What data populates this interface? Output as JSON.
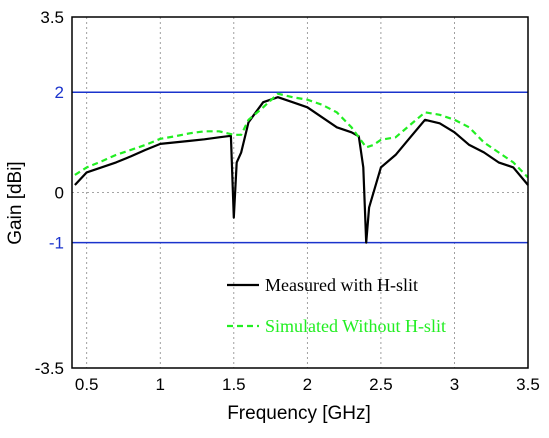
{
  "chart_data": {
    "type": "line",
    "xlabel": "Frequency [GHz]",
    "ylabel": "Gain [dBi]",
    "xlim": [
      0.4,
      3.5
    ],
    "ylim": [
      -3.5,
      3.5
    ],
    "x_ticks": [
      "0.5",
      "1",
      "1.5",
      "2",
      "2.5",
      "3",
      "3.5"
    ],
    "y_ticks": [
      {
        "value": 3.5,
        "label": "3.5",
        "color": "#000000"
      },
      {
        "value": 2,
        "label": "2",
        "color": "#1a33cc"
      },
      {
        "value": 0,
        "label": "0",
        "color": "#000000"
      },
      {
        "value": -1,
        "label": "-1",
        "color": "#1a33cc"
      },
      {
        "value": -3.5,
        "label": "-3.5",
        "color": "#000000"
      }
    ],
    "grid": true,
    "reference_lines": [
      {
        "y": 2,
        "color": "#1a33cc"
      },
      {
        "y": -1,
        "color": "#1a33cc"
      }
    ],
    "legend_position": "bottom-right",
    "series": [
      {
        "name": "Measured with H-slit",
        "color": "#000000",
        "dash": "solid",
        "x": [
          0.42,
          0.5,
          0.6,
          0.7,
          0.8,
          0.9,
          1.0,
          1.1,
          1.2,
          1.3,
          1.4,
          1.48,
          1.5,
          1.52,
          1.55,
          1.6,
          1.7,
          1.8,
          1.9,
          2.0,
          2.1,
          2.2,
          2.3,
          2.35,
          2.38,
          2.4,
          2.42,
          2.5,
          2.6,
          2.7,
          2.8,
          2.9,
          3.0,
          3.1,
          3.2,
          3.3,
          3.4,
          3.5
        ],
        "y": [
          0.15,
          0.4,
          0.5,
          0.6,
          0.72,
          0.85,
          0.97,
          1.0,
          1.03,
          1.06,
          1.1,
          1.13,
          -0.5,
          0.6,
          0.8,
          1.4,
          1.8,
          1.9,
          1.8,
          1.7,
          1.5,
          1.3,
          1.2,
          1.12,
          0.5,
          -1.0,
          -0.3,
          0.5,
          0.75,
          1.1,
          1.45,
          1.38,
          1.2,
          0.95,
          0.8,
          0.6,
          0.5,
          0.15
        ]
      },
      {
        "name": "Simulated Without H-slit",
        "color": "#22ee22",
        "dash": "dashed",
        "x": [
          0.42,
          0.5,
          0.6,
          0.7,
          0.8,
          0.9,
          1.0,
          1.1,
          1.2,
          1.3,
          1.4,
          1.5,
          1.55,
          1.6,
          1.7,
          1.8,
          1.9,
          2.0,
          2.1,
          2.2,
          2.3,
          2.4,
          2.45,
          2.5,
          2.6,
          2.7,
          2.8,
          2.9,
          3.0,
          3.1,
          3.2,
          3.3,
          3.4,
          3.5
        ],
        "y": [
          0.35,
          0.5,
          0.62,
          0.75,
          0.85,
          0.95,
          1.07,
          1.12,
          1.18,
          1.22,
          1.22,
          1.15,
          1.15,
          1.45,
          1.7,
          1.97,
          1.9,
          1.85,
          1.75,
          1.6,
          1.3,
          0.9,
          0.95,
          1.05,
          1.1,
          1.35,
          1.6,
          1.55,
          1.45,
          1.3,
          1.0,
          0.8,
          0.6,
          0.3
        ]
      }
    ]
  }
}
